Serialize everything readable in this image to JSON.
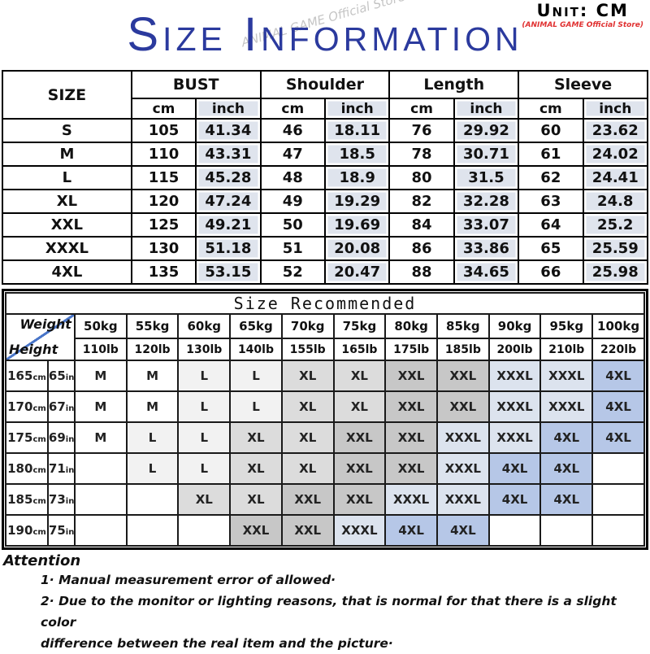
{
  "header": {
    "title": "Size Information",
    "unit_label": "Unit: CM",
    "store_label": "(ANIMAL GAME Official Store)",
    "watermark": "ANIMAL GAME Official Store"
  },
  "size_table": {
    "corner_label": "SIZE",
    "groups": [
      "BUST",
      "Shoulder",
      "Length",
      "Sleeve"
    ],
    "unit_headers": [
      "cm",
      "inch"
    ],
    "rows": [
      {
        "size": "S",
        "values": [
          "105",
          "41.34",
          "46",
          "18.11",
          "76",
          "29.92",
          "60",
          "23.62"
        ]
      },
      {
        "size": "M",
        "values": [
          "110",
          "43.31",
          "47",
          "18.5",
          "78",
          "30.71",
          "61",
          "24.02"
        ]
      },
      {
        "size": "L",
        "values": [
          "115",
          "45.28",
          "48",
          "18.9",
          "80",
          "31.5",
          "62",
          "24.41"
        ]
      },
      {
        "size": "XL",
        "values": [
          "120",
          "47.24",
          "49",
          "19.29",
          "82",
          "32.28",
          "63",
          "24.8"
        ]
      },
      {
        "size": "XXL",
        "values": [
          "125",
          "49.21",
          "50",
          "19.69",
          "84",
          "33.07",
          "64",
          "25.2"
        ]
      },
      {
        "size": "XXXL",
        "values": [
          "130",
          "51.18",
          "51",
          "20.08",
          "86",
          "33.86",
          "65",
          "25.59"
        ]
      },
      {
        "size": "4XL",
        "values": [
          "135",
          "53.15",
          "52",
          "20.47",
          "88",
          "34.65",
          "66",
          "25.98"
        ]
      }
    ]
  },
  "recommend_table": {
    "title": "Size Recommended",
    "corner": {
      "top": "Weight",
      "bottom": "Height"
    },
    "weights_kg": [
      "50kg",
      "55kg",
      "60kg",
      "65kg",
      "70kg",
      "75kg",
      "80kg",
      "85kg",
      "90kg",
      "95kg",
      "100kg"
    ],
    "weights_lb": [
      "110lb",
      "120lb",
      "130lb",
      "140lb",
      "155lb",
      "165lb",
      "175lb",
      "185lb",
      "200lb",
      "210lb",
      "220lb"
    ],
    "rows": [
      {
        "cm": "165cm",
        "in": "65in",
        "cells": [
          "M",
          "M",
          "L",
          "L",
          "XL",
          "XL",
          "XXL",
          "XXL",
          "XXXL",
          "XXXL",
          "4XL"
        ]
      },
      {
        "cm": "170cm",
        "in": "67in",
        "cells": [
          "M",
          "M",
          "L",
          "L",
          "XL",
          "XL",
          "XXL",
          "XXL",
          "XXXL",
          "XXXL",
          "4XL"
        ]
      },
      {
        "cm": "175cm",
        "in": "69in",
        "cells": [
          "M",
          "L",
          "L",
          "XL",
          "XL",
          "XXL",
          "XXL",
          "XXXL",
          "XXXL",
          "4XL",
          "4XL"
        ]
      },
      {
        "cm": "180cm",
        "in": "71in",
        "cells": [
          "",
          "L",
          "L",
          "XL",
          "XL",
          "XXL",
          "XXL",
          "XXXL",
          "4XL",
          "4XL",
          ""
        ]
      },
      {
        "cm": "185cm",
        "in": "73in",
        "cells": [
          "",
          "",
          "XL",
          "XL",
          "XXL",
          "XXL",
          "XXXL",
          "XXXL",
          "4XL",
          "4XL",
          ""
        ]
      },
      {
        "cm": "190cm",
        "in": "75in",
        "cells": [
          "",
          "",
          "",
          "XXL",
          "XXL",
          "XXXL",
          "4XL",
          "4XL",
          "",
          "",
          ""
        ]
      }
    ]
  },
  "attention": {
    "title": "Attention",
    "items": [
      {
        "lines": [
          "1·  Manual measurement error of allowed·"
        ]
      },
      {
        "lines": [
          "2·  Due to the monitor or lighting reasons, that is normal for that there is a slight color",
          "difference between the real item and the picture·"
        ]
      }
    ]
  },
  "colors": {
    "accent_blue": "#2b3a9e",
    "store_red": "#e03030",
    "diagonal_blue": "#4a76c9",
    "inch_bg": "#dfe4ed",
    "size_colors": {
      "M": "#ffffff",
      "L": "#f2f2f2",
      "XL": "#dcdcdc",
      "XXL": "#c7c7c7",
      "XXXL": "#dce3ee",
      "4XL": "#b6c7e7"
    }
  }
}
